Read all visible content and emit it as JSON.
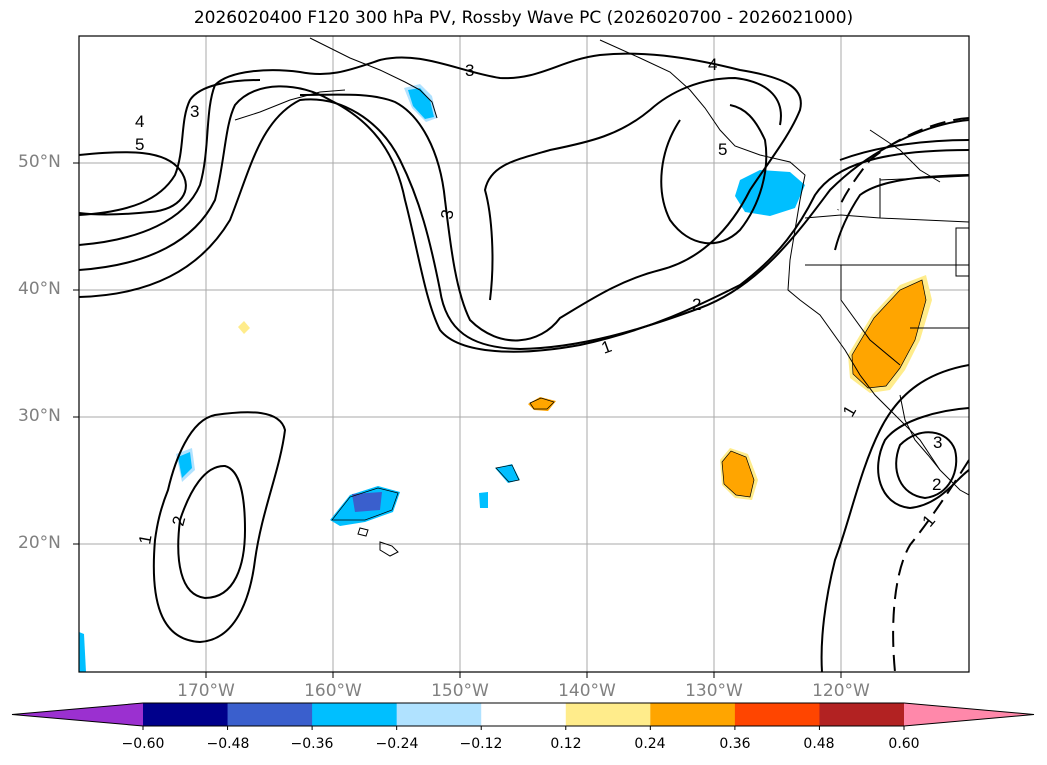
{
  "title": "2026020400 F120 300 hPa PV, Rossby Wave PC (2026020700 - 2026021000)",
  "lat_labels": [
    "50°N",
    "40°N",
    "30°N",
    "20°N"
  ],
  "lon_labels": [
    "170°W",
    "160°W",
    "150°W",
    "140°W",
    "130°W",
    "120°W"
  ],
  "contour_labels": [
    "1",
    "2",
    "3",
    "4",
    "5"
  ],
  "colorbar": {
    "ticks": [
      "−0.60",
      "−0.48",
      "−0.36",
      "−0.24",
      "−0.12",
      "0.12",
      "0.24",
      "0.36",
      "0.48",
      "0.60"
    ],
    "colors": [
      "#9b30d0",
      "#00008b",
      "#3a5fcd",
      "#00bfff",
      "#b0e2ff",
      "#ffffff",
      "#ffec8b",
      "#ffa500",
      "#ff4500",
      "#b22222",
      "#ff88aa"
    ]
  }
}
